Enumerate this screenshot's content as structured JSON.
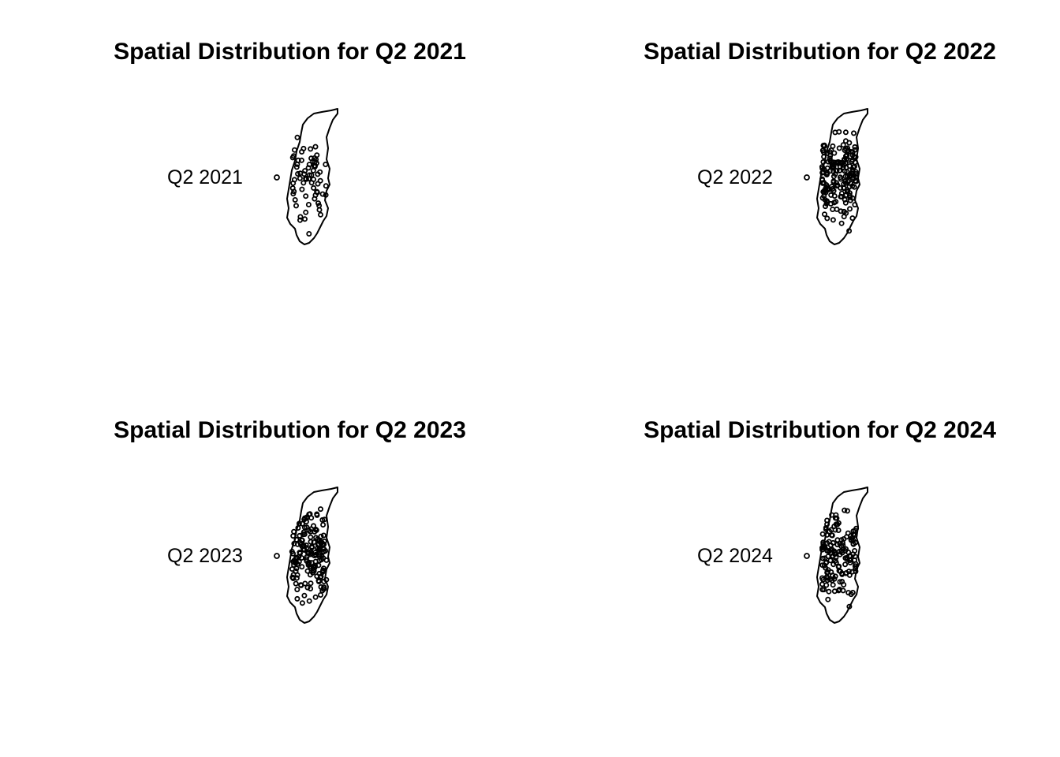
{
  "panels": [
    {
      "title": "Spatial Distribution for Q2 2021",
      "legend_label": "Q2 2021",
      "marker": "open-circle",
      "seed": 11,
      "n": 70
    },
    {
      "title": "Spatial Distribution for Q2 2022",
      "legend_label": "Q2 2022",
      "marker": "open-circle",
      "seed": 23,
      "n": 180
    },
    {
      "title": "Spatial Distribution for Q2 2023",
      "legend_label": "Q2 2023",
      "marker": "open-circle",
      "seed": 37,
      "n": 170
    },
    {
      "title": "Spatial Distribution for Q2 2024",
      "legend_label": "Q2 2024",
      "marker": "open-circle",
      "seed": 51,
      "n": 150
    }
  ],
  "colors": {
    "stroke": "#000000",
    "background": "#ffffff"
  }
}
